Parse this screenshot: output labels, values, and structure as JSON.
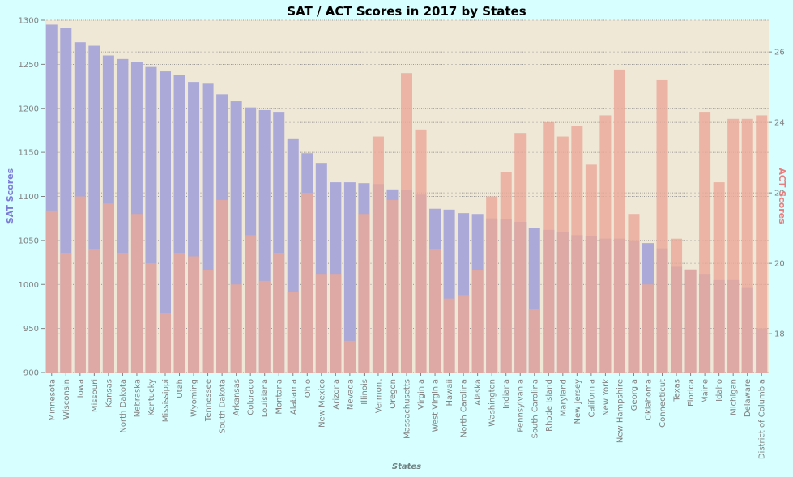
{
  "chart_data": {
    "type": "bar",
    "title": "SAT / ACT Scores in 2017 by States",
    "xlabel": "States",
    "ylabel_left": "SAT Scores",
    "ylabel_right": "ACT Scores",
    "ylim_left": [
      900,
      1300
    ],
    "ylim_right": [
      16.9,
      26.9
    ],
    "yticks_left": [
      900,
      950,
      1000,
      1050,
      1100,
      1150,
      1200,
      1250,
      1300
    ],
    "yticks_right": [
      18,
      20,
      22,
      24,
      26
    ],
    "grid": true,
    "colors": {
      "sat": "#aba9d8",
      "act": "#e9a898",
      "background": "#f0e8d6",
      "figure": "#d7ffff"
    },
    "categories": [
      "Minnesota",
      "Wisconsin",
      "Iowa",
      "Missouri",
      "Kansas",
      "North Dakota",
      "Nebraska",
      "Kentucky",
      "Mississippi",
      "Utah",
      "Wyoming",
      "Tennessee",
      "South Dakota",
      "Arkansas",
      "Colorado",
      "Louisiana",
      "Montana",
      "Alabama",
      "Ohio",
      "New Mexico",
      "Arizona",
      "Nevada",
      "Illinois",
      "Vermont",
      "Oregon",
      "Massachusetts",
      "Virginia",
      "West Virginia",
      "Hawaii",
      "North Carolina",
      "Alaska",
      "Washington",
      "Indiana",
      "Pennsylvania",
      "South Carolina",
      "Rhode Island",
      "Maryland",
      "New Jersey",
      "California",
      "New York",
      "New Hampshire",
      "Georgia",
      "Oklahoma",
      "Connecticut",
      "Texas",
      "Florida",
      "Maine",
      "Idaho",
      "Michigan",
      "Delaware",
      "District of Columbia"
    ],
    "series": [
      {
        "name": "SAT",
        "axis": "left",
        "values": [
          1295,
          1291,
          1275,
          1271,
          1260,
          1256,
          1253,
          1247,
          1242,
          1238,
          1230,
          1228,
          1216,
          1208,
          1201,
          1198,
          1196,
          1165,
          1149,
          1138,
          1116,
          1116,
          1115,
          1114,
          1108,
          1107,
          1102,
          1086,
          1085,
          1081,
          1080,
          1075,
          1074,
          1071,
          1064,
          1062,
          1060,
          1056,
          1055,
          1052,
          1052,
          1050,
          1047,
          1041,
          1020,
          1017,
          1012,
          1005,
          1005,
          996,
          950
        ]
      },
      {
        "name": "ACT",
        "axis": "right",
        "values": [
          21.5,
          20.3,
          21.9,
          20.4,
          21.7,
          20.3,
          21.4,
          20.0,
          18.6,
          20.3,
          20.2,
          19.8,
          21.8,
          19.4,
          20.8,
          19.5,
          20.3,
          19.2,
          22.0,
          19.7,
          19.7,
          17.8,
          21.4,
          23.6,
          21.8,
          25.4,
          23.8,
          20.4,
          19.0,
          19.1,
          19.8,
          21.9,
          22.6,
          23.7,
          18.7,
          24.0,
          23.6,
          23.9,
          22.8,
          24.2,
          25.5,
          21.4,
          19.4,
          25.2,
          20.7,
          19.8,
          24.3,
          22.3,
          24.1,
          24.1,
          24.2
        ]
      }
    ]
  }
}
